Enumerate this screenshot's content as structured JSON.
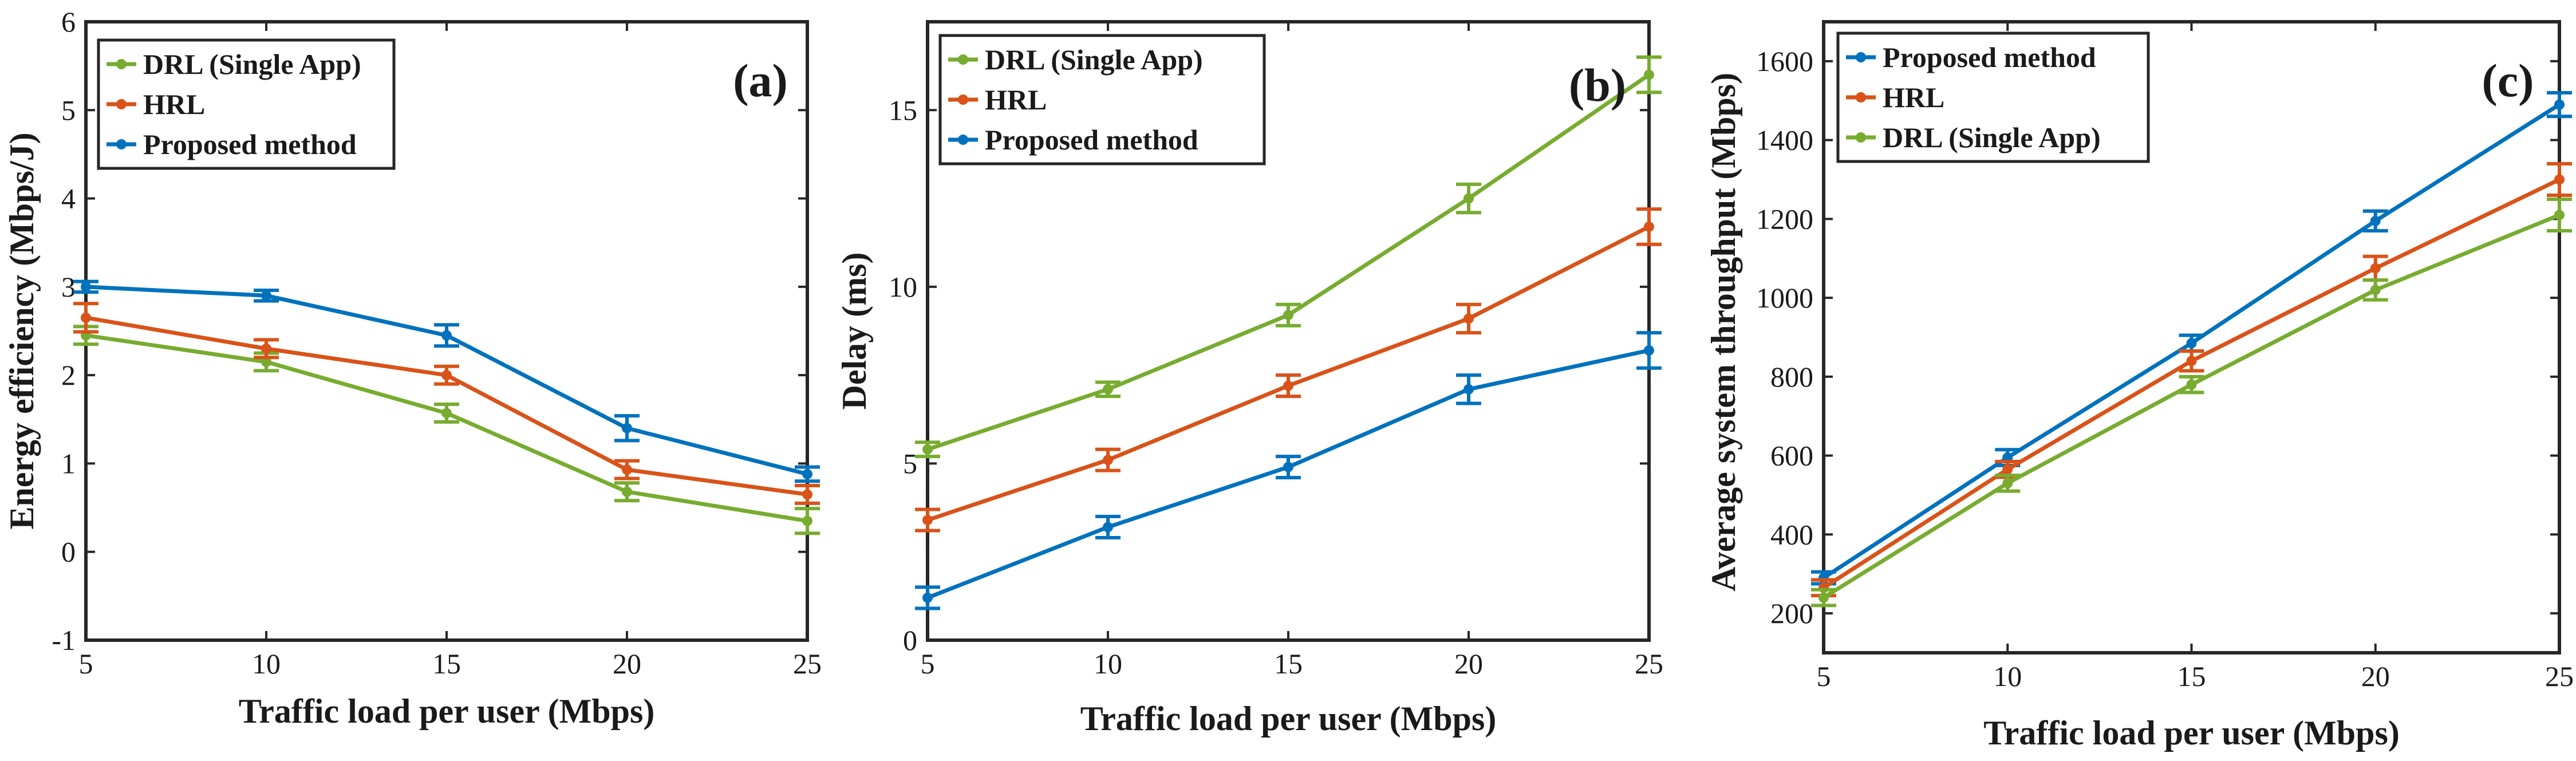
{
  "colors": {
    "green": "#77ac30",
    "orange": "#d95319",
    "blue": "#0072bd",
    "axis": "#262626"
  },
  "chart_data": [
    {
      "type": "line",
      "panel_tag": "(a)",
      "xlabel": "Traffic load per user (Mbps)",
      "ylabel": "Energy efficiency (Mbps/J)",
      "x": [
        5,
        10,
        15,
        20,
        25
      ],
      "xlim": [
        5,
        25
      ],
      "ylim": [
        -1,
        6
      ],
      "xticks": [
        5,
        10,
        15,
        20,
        25
      ],
      "yticks": [
        -1,
        0,
        1,
        2,
        3,
        4,
        5,
        6
      ],
      "grid": false,
      "legend_position": "top-left",
      "series": [
        {
          "name": "DRL (Single App)",
          "color_key": "green",
          "values": [
            2.45,
            2.15,
            1.57,
            0.68,
            0.35
          ],
          "errors": [
            0.1,
            0.1,
            0.1,
            0.1,
            0.14
          ]
        },
        {
          "name": "HRL",
          "color_key": "orange",
          "values": [
            2.65,
            2.3,
            2.0,
            0.93,
            0.65
          ],
          "errors": [
            0.16,
            0.1,
            0.1,
            0.1,
            0.1
          ]
        },
        {
          "name": "Proposed method",
          "color_key": "blue",
          "values": [
            3.0,
            2.9,
            2.45,
            1.4,
            0.88
          ],
          "errors": [
            0.06,
            0.06,
            0.12,
            0.14,
            0.08
          ]
        }
      ]
    },
    {
      "type": "line",
      "panel_tag": "(b)",
      "xlabel": "Traffic load  per user (Mbps)",
      "ylabel": "Delay (ms)",
      "x": [
        5,
        10,
        15,
        20,
        25
      ],
      "xlim": [
        5,
        25
      ],
      "ylim": [
        0,
        17.5
      ],
      "xticks": [
        5,
        10,
        15,
        20,
        25
      ],
      "yticks": [
        0,
        5,
        10,
        15
      ],
      "grid": false,
      "legend_position": "top-left",
      "series": [
        {
          "name": "DRL (Single App)",
          "color_key": "green",
          "values": [
            5.4,
            7.1,
            9.2,
            12.5,
            16.0
          ],
          "errors": [
            0.2,
            0.2,
            0.3,
            0.4,
            0.5
          ]
        },
        {
          "name": "HRL",
          "color_key": "orange",
          "values": [
            3.4,
            5.1,
            7.2,
            9.1,
            11.7
          ],
          "errors": [
            0.3,
            0.3,
            0.3,
            0.4,
            0.5
          ]
        },
        {
          "name": "Proposed method",
          "color_key": "blue",
          "values": [
            1.2,
            3.2,
            4.9,
            7.1,
            8.2
          ],
          "errors": [
            0.3,
            0.3,
            0.3,
            0.4,
            0.5
          ]
        }
      ]
    },
    {
      "type": "line",
      "panel_tag": "(c)",
      "xlabel": "Traffic load per user (Mbps)",
      "ylabel": "Average system throughput (Mbps)",
      "x": [
        5,
        10,
        15,
        20,
        25
      ],
      "xlim": [
        5,
        25
      ],
      "ylim": [
        100,
        1700
      ],
      "xticks": [
        5,
        10,
        15,
        20,
        25
      ],
      "yticks": [
        200,
        400,
        600,
        800,
        1000,
        1200,
        1400,
        1600
      ],
      "grid": false,
      "legend_position": "top-left",
      "series": [
        {
          "name": "Proposed method",
          "color_key": "blue",
          "values": [
            290,
            595,
            885,
            1195,
            1490
          ],
          "errors": [
            15,
            20,
            20,
            25,
            30
          ]
        },
        {
          "name": "HRL",
          "color_key": "orange",
          "values": [
            265,
            565,
            840,
            1075,
            1300
          ],
          "errors": [
            20,
            20,
            25,
            30,
            40
          ]
        },
        {
          "name": "DRL (Single App)",
          "color_key": "green",
          "values": [
            240,
            530,
            780,
            1020,
            1210
          ],
          "errors": [
            20,
            20,
            20,
            25,
            40
          ]
        }
      ]
    }
  ]
}
